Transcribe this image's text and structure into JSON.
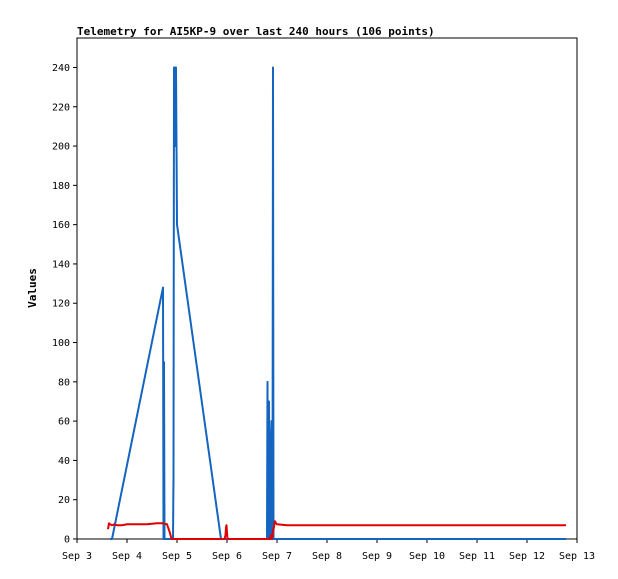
{
  "chart_data": {
    "type": "line",
    "title": "Telemetry for AI5KP-9 over last 240 hours (106 points)",
    "xlabel": "",
    "ylabel": "Values",
    "xlim": [
      0,
      10
    ],
    "ylim": [
      0,
      255
    ],
    "x_ticks": [
      0,
      1,
      2,
      3,
      4,
      5,
      6,
      7,
      8,
      9,
      10
    ],
    "x_tick_labels": [
      "Sep 3",
      "Sep 4",
      "Sep 5",
      "Sep 6",
      "Sep 7",
      "Sep 8",
      "Sep 9",
      "Sep 10",
      "Sep 11",
      "Sep 12",
      "Sep 13"
    ],
    "y_ticks": [
      0,
      20,
      40,
      60,
      80,
      100,
      120,
      140,
      160,
      180,
      200,
      220,
      240
    ],
    "grid": false,
    "legend": "none",
    "series": [
      {
        "color": "#1565c0",
        "points": [
          [
            0.66,
            0
          ],
          [
            0.7,
            0
          ],
          [
            1.72,
            128
          ],
          [
            1.73,
            0
          ],
          [
            1.74,
            90
          ],
          [
            1.75,
            0
          ],
          [
            1.91,
            0
          ],
          [
            1.92,
            0
          ],
          [
            1.93,
            32
          ],
          [
            1.94,
            240
          ],
          [
            1.95,
            200
          ],
          [
            1.96,
            240
          ],
          [
            1.97,
            200
          ],
          [
            1.98,
            240
          ],
          [
            1.99,
            200
          ],
          [
            2.0,
            160
          ],
          [
            2.88,
            0
          ],
          [
            2.95,
            0
          ],
          [
            3.0,
            0
          ],
          [
            3.8,
            0
          ],
          [
            3.81,
            80
          ],
          [
            3.82,
            0
          ],
          [
            3.83,
            40
          ],
          [
            3.84,
            70
          ],
          [
            3.85,
            30
          ],
          [
            3.86,
            0
          ],
          [
            3.87,
            0
          ],
          [
            3.88,
            50
          ],
          [
            3.89,
            60
          ],
          [
            3.9,
            0
          ],
          [
            3.91,
            0
          ],
          [
            3.92,
            240
          ],
          [
            3.93,
            0
          ],
          [
            3.96,
            0
          ],
          [
            4.5,
            0
          ],
          [
            5.5,
            0
          ],
          [
            6.5,
            0
          ],
          [
            7.5,
            0
          ],
          [
            8.5,
            0
          ],
          [
            9.5,
            0
          ],
          [
            9.78,
            0
          ]
        ]
      },
      {
        "color": "#e00000",
        "points": [
          [
            0.62,
            5
          ],
          [
            0.64,
            8
          ],
          [
            0.66,
            7.5
          ],
          [
            0.7,
            7
          ],
          [
            0.75,
            7.5
          ],
          [
            0.8,
            7
          ],
          [
            0.9,
            7
          ],
          [
            1.0,
            7.5
          ],
          [
            1.2,
            7.5
          ],
          [
            1.4,
            7.5
          ],
          [
            1.6,
            8
          ],
          [
            1.7,
            8
          ],
          [
            1.8,
            7.5
          ],
          [
            1.86,
            3
          ],
          [
            1.89,
            0
          ],
          [
            2.95,
            0
          ],
          [
            2.97,
            2
          ],
          [
            2.98,
            6
          ],
          [
            2.99,
            7
          ],
          [
            3.0,
            3
          ],
          [
            3.01,
            0
          ],
          [
            3.86,
            0
          ],
          [
            3.88,
            2
          ],
          [
            3.9,
            0
          ],
          [
            3.92,
            4
          ],
          [
            3.94,
            6
          ],
          [
            3.95,
            8
          ],
          [
            3.96,
            9
          ],
          [
            3.98,
            8
          ],
          [
            4.0,
            7.5
          ],
          [
            4.2,
            7
          ],
          [
            4.6,
            7
          ],
          [
            5.0,
            7
          ],
          [
            5.5,
            7
          ],
          [
            6.0,
            7
          ],
          [
            6.5,
            7
          ],
          [
            7.0,
            7
          ],
          [
            7.5,
            7
          ],
          [
            8.0,
            7
          ],
          [
            8.5,
            7
          ],
          [
            9.0,
            7
          ],
          [
            9.5,
            7
          ],
          [
            9.78,
            7
          ]
        ]
      }
    ]
  }
}
